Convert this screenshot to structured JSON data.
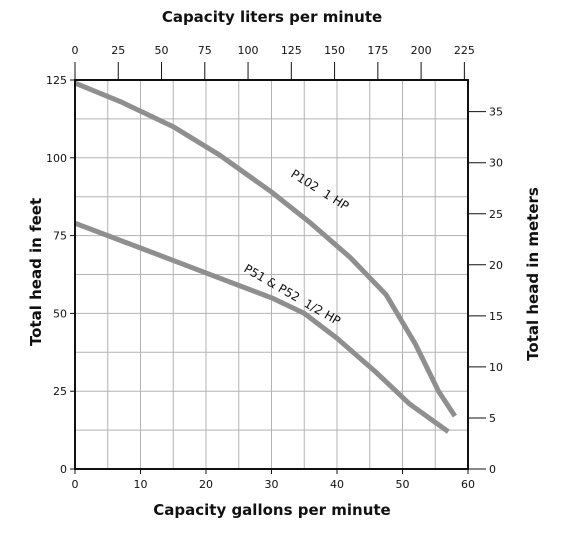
{
  "chart_data": {
    "type": "line",
    "x_bottom": {
      "label": "Capacity gallons per minute",
      "range": [
        0,
        60
      ],
      "ticks": [
        "0",
        "10",
        "20",
        "30",
        "40",
        "50",
        "60"
      ]
    },
    "x_top": {
      "label": "Capacity liters per minute",
      "range": [
        0,
        227.1
      ],
      "ticks": [
        "0",
        "25",
        "50",
        "75",
        "100",
        "125",
        "150",
        "175",
        "200",
        "225"
      ]
    },
    "y_left": {
      "label": "Total head in feet",
      "range": [
        0,
        125
      ],
      "ticks": [
        "0",
        "25",
        "50",
        "75",
        "100",
        "125"
      ]
    },
    "y_right": {
      "label": "Total head in meters",
      "range": [
        0,
        38.1
      ],
      "ticks": [
        "0",
        "5",
        "10",
        "15",
        "20",
        "25",
        "30",
        "35"
      ]
    },
    "grid": true,
    "series": [
      {
        "name": "P102  1 HP",
        "color": "#8f8f8f",
        "x": [
          0,
          7,
          15,
          22,
          30,
          36,
          42,
          47.5,
          52,
          55.5,
          58
        ],
        "y": [
          124,
          118,
          110,
          101,
          89,
          79,
          68,
          56,
          40,
          25,
          17
        ]
      },
      {
        "name": "P51 & P52  1/2 HP",
        "color": "#8f8f8f",
        "x": [
          0,
          10,
          20,
          30,
          35,
          40,
          46,
          51,
          57
        ],
        "y": [
          79,
          71,
          63,
          55,
          50,
          42,
          31,
          21,
          12
        ]
      }
    ]
  }
}
